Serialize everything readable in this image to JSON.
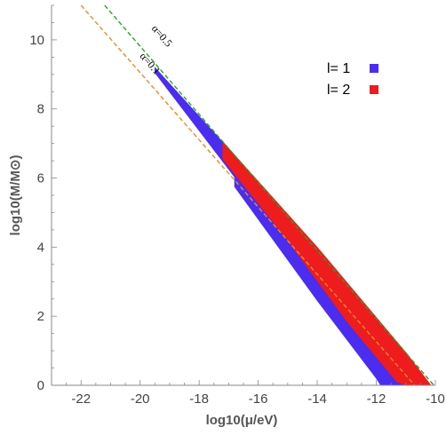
{
  "chart_data": {
    "type": "area",
    "xlabel": "log10(μ/eV)",
    "ylabel": "log10(M/M⊙)",
    "xlim": [
      -23,
      -10
    ],
    "ylim": [
      0,
      11
    ],
    "x_ticks": [
      -22,
      -20,
      -18,
      -16,
      -14,
      -12,
      -10
    ],
    "y_ticks": [
      0,
      2,
      4,
      6,
      8,
      10
    ],
    "x_tick_labels": [
      "-22",
      "-20",
      "-18",
      "-16",
      "-14",
      "-12",
      "-10"
    ],
    "y_tick_labels": [
      "0",
      "2",
      "4",
      "6",
      "8",
      "10"
    ],
    "series": [
      {
        "name": "l= 1",
        "color": "#4B2DF0",
        "bands": [
          {
            "upper": [
              [
                -19.5,
                9.2
              ],
              [
                -17.0,
                6.85
              ],
              [
                -14.0,
                3.9
              ],
              [
                -11.0,
                0.9
              ],
              [
                -10.75,
                0
              ]
            ],
            "lower": [
              [
                -19.5,
                9.05
              ],
              [
                -17.0,
                6.25
              ],
              [
                -14.0,
                2.85
              ],
              [
                -12.1,
                0.65
              ],
              [
                -11.5,
                0
              ]
            ]
          },
          {
            "upper": [
              [
                -16.8,
                6.0
              ],
              [
                -14.0,
                2.95
              ],
              [
                -11.9,
                0.55
              ],
              [
                -11.45,
                0
              ]
            ],
            "lower": [
              [
                -16.8,
                5.75
              ],
              [
                -14.0,
                2.45
              ],
              [
                -12.0,
                0.2
              ],
              [
                -11.85,
                0
              ]
            ]
          }
        ]
      },
      {
        "name": "l= 2",
        "color": "#EE1C1C",
        "bands": [
          {
            "upper": [
              [
                -17.2,
                7.05
              ],
              [
                -14.0,
                4.0
              ],
              [
                -11.0,
                0.95
              ],
              [
                -10.15,
                0
              ]
            ],
            "lower": [
              [
                -17.2,
                6.55
              ],
              [
                -15.0,
                4.2
              ],
              [
                -13.0,
                1.85
              ],
              [
                -11.3,
                0.1
              ],
              [
                -11.0,
                0
              ]
            ]
          }
        ]
      }
    ],
    "reference_lines": [
      {
        "label": "α=0.5",
        "color": "#2CA02C",
        "style": "dashed",
        "points": [
          [
            -21.2,
            11.0
          ],
          [
            -10.05,
            0
          ]
        ]
      },
      {
        "label": "α=0.1",
        "color": "#E88A2E",
        "style": "dashed",
        "points": [
          [
            -22.0,
            11.0
          ],
          [
            -10.7,
            0
          ]
        ]
      }
    ],
    "legend": {
      "placement": "top-right"
    },
    "grid": false
  }
}
